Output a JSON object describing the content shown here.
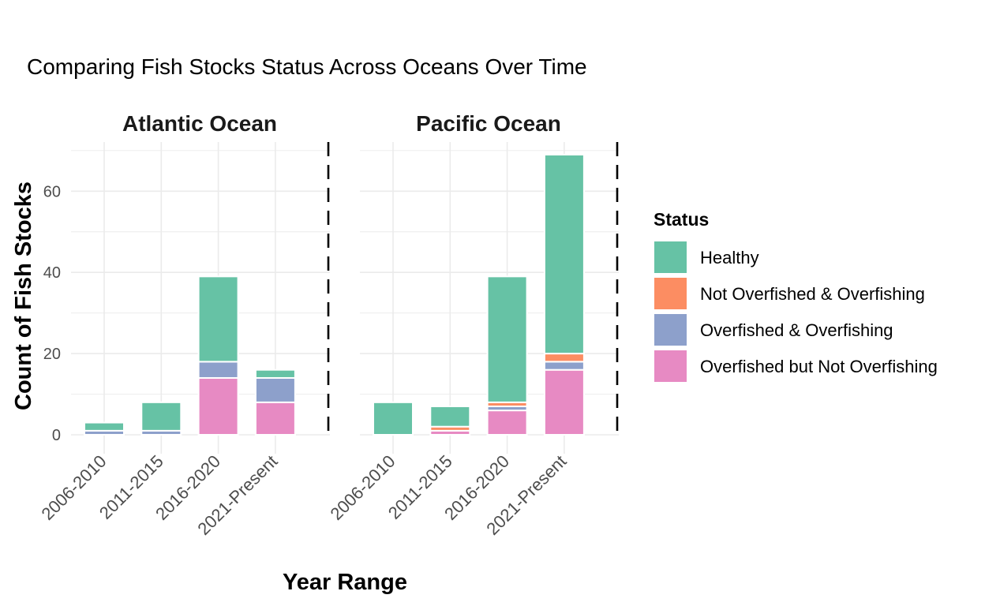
{
  "chart_data": {
    "type": "bar",
    "stacked": true,
    "title": "Comparing Fish Stocks Status Across Oceans Over Time",
    "xlabel": "Year Range",
    "ylabel": "Count of Fish Stocks",
    "ylim": [
      0,
      72
    ],
    "yticks": [
      "0",
      "20",
      "40",
      "60"
    ],
    "categories": [
      "2006-2010",
      "2011-2015",
      "2016-2020",
      "2021-Present"
    ],
    "legend": {
      "title": "Status",
      "position": "right",
      "entries": [
        "Healthy",
        "Not Overfished & Overfishing",
        "Overfished & Overfishing",
        "Overfished but Not Overfishing"
      ]
    },
    "colors": {
      "Healthy": "#66c2a5",
      "Not Overfished & Overfishing": "#fc8d62",
      "Overfished & Overfishing": "#8da0cb",
      "Overfished but Not Overfishing": "#e78ac3"
    },
    "grid": true,
    "facets": [
      {
        "name": "Atlantic Ocean",
        "series": [
          {
            "name": "Overfished but Not Overfishing",
            "values": [
              0,
              0,
              14,
              8
            ]
          },
          {
            "name": "Overfished & Overfishing",
            "values": [
              1,
              1,
              4,
              6
            ]
          },
          {
            "name": "Not Overfished & Overfishing",
            "values": [
              0,
              0,
              0,
              0
            ]
          },
          {
            "name": "Healthy",
            "values": [
              2,
              7,
              21,
              2
            ]
          }
        ]
      },
      {
        "name": "Pacific Ocean",
        "series": [
          {
            "name": "Overfished but Not Overfishing",
            "values": [
              0,
              1,
              6,
              16
            ]
          },
          {
            "name": "Overfished & Overfishing",
            "values": [
              0,
              0,
              1,
              2
            ]
          },
          {
            "name": "Not Overfished & Overfishing",
            "values": [
              0,
              1,
              1,
              2
            ]
          },
          {
            "name": "Healthy",
            "values": [
              8,
              5,
              31,
              49
            ]
          }
        ]
      }
    ]
  }
}
